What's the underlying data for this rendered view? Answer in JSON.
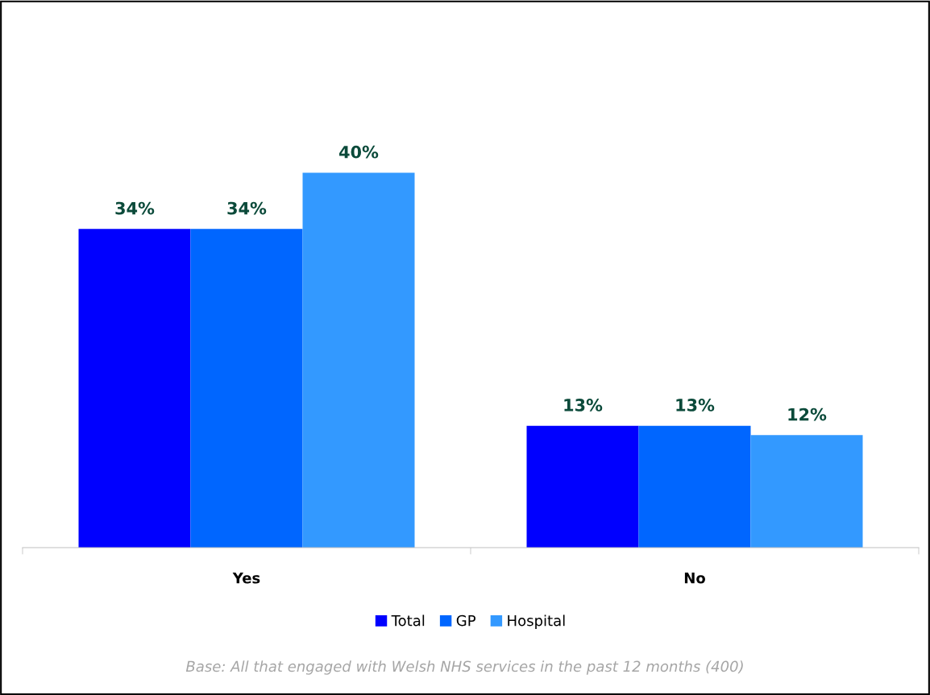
{
  "chart_data": {
    "type": "bar",
    "categories": [
      "Yes",
      "No"
    ],
    "series": [
      {
        "name": "Total",
        "color": "#0000ff",
        "values": [
          34,
          13
        ],
        "value_labels": [
          "34%",
          "13%"
        ]
      },
      {
        "name": "GP",
        "color": "#0066ff",
        "values": [
          34,
          13
        ],
        "value_labels": [
          "34%",
          "13%"
        ]
      },
      {
        "name": "Hospital",
        "color": "#3399ff",
        "values": [
          40,
          12
        ],
        "value_labels": [
          "40%",
          "12%"
        ]
      }
    ],
    "grid": false,
    "legend": "bottom",
    "annotations": [
      "Base: All that engaged with Welsh NHS services in the past 12 months (400)"
    ]
  }
}
